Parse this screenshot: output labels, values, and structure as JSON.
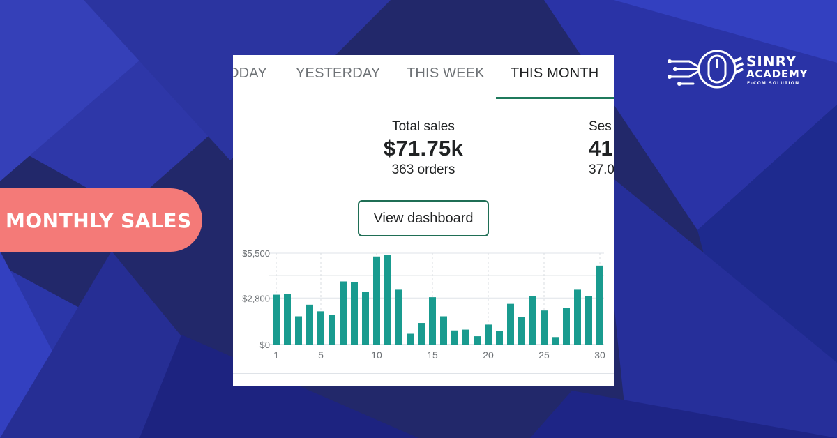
{
  "colors": {
    "background": "#22286a",
    "card": "#ffffff",
    "bar": "#199b8f",
    "accent_green": "#1f7a5c",
    "badge": "#f47a78"
  },
  "tabs": [
    {
      "label": "TODAY",
      "visible_label": "DDAY",
      "active": false
    },
    {
      "label": "YESTERDAY",
      "active": false
    },
    {
      "label": "THIS WEEK",
      "active": false
    },
    {
      "label": "THIS MONTH",
      "active": true
    }
  ],
  "stats": {
    "total_sales": {
      "label": "Total sales",
      "value": "$71.75k",
      "sub": "363 orders"
    },
    "sessions": {
      "label": "Ses",
      "value": "41",
      "sub": "37.0"
    }
  },
  "view_dashboard_label": "View dashboard",
  "badge_text": "MONTHLY SALES",
  "logo": {
    "name_line1": "SINRY",
    "name_line2": "ACADEMY",
    "tagline": "E-COM SOLUTION",
    "icon": "mouse-circuit-icon"
  },
  "chart_data": {
    "type": "bar",
    "title": "",
    "xlabel": "",
    "ylabel": "",
    "y_ticks": [
      "$5,500",
      "$2,800",
      "$0"
    ],
    "y_tick_values": [
      5500,
      2800,
      0
    ],
    "x_ticks": [
      "1",
      "5",
      "10",
      "15",
      "20",
      "25",
      "30"
    ],
    "ylim": [
      0,
      5500
    ],
    "grid": true,
    "categories": [
      "1",
      "2",
      "3",
      "4",
      "5",
      "6",
      "7",
      "8",
      "9",
      "10",
      "11",
      "12",
      "13",
      "14",
      "15",
      "16",
      "17",
      "18",
      "19",
      "20",
      "21",
      "22",
      "23",
      "24",
      "25",
      "26",
      "27",
      "28",
      "29",
      "30"
    ],
    "values": [
      3000,
      3050,
      1700,
      2400,
      2000,
      1800,
      3800,
      3750,
      3150,
      5300,
      5400,
      3300,
      650,
      1300,
      2850,
      1700,
      850,
      900,
      500,
      1200,
      800,
      2450,
      1650,
      2900,
      2050,
      450,
      2200,
      3300,
      2900,
      4750
    ]
  }
}
